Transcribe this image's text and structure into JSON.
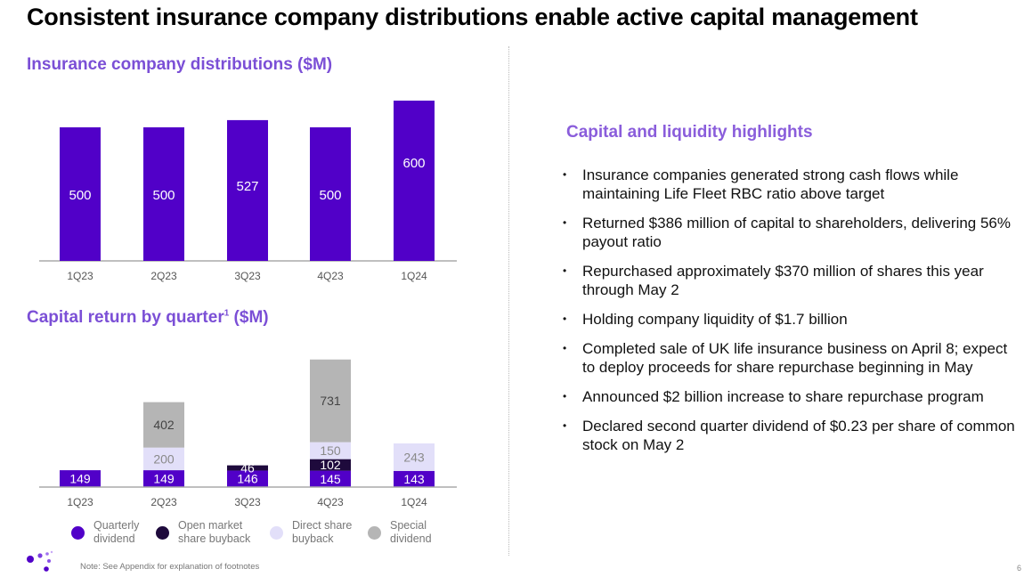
{
  "title": "Consistent insurance company distributions enable active capital management",
  "page_number": "6",
  "note": "Note: See Appendix for explanation of footnotes",
  "chart_data": [
    {
      "type": "bar",
      "title": "Insurance company distributions ($M)",
      "categories": [
        "1Q23",
        "2Q23",
        "3Q23",
        "4Q23",
        "1Q24"
      ],
      "values": [
        500,
        500,
        527,
        500,
        600
      ],
      "color": "#5100c8",
      "grid": false
    },
    {
      "type": "stacked-bar",
      "title": "Capital return by quarter",
      "title_sup": "1",
      "title_suffix": " ($M)",
      "categories": [
        "1Q23",
        "2Q23",
        "3Q23",
        "4Q23",
        "1Q24"
      ],
      "series": [
        {
          "name": "Quarterly dividend",
          "values": [
            149,
            149,
            146,
            145,
            143
          ],
          "color": "#5100c8",
          "label_color": "#ffffff"
        },
        {
          "name": "Open market share buyback",
          "values": [
            0,
            0,
            46,
            102,
            0
          ],
          "color": "#1e0a3c",
          "label_color": "#ffffff"
        },
        {
          "name": "Direct share buyback",
          "values": [
            0,
            200,
            0,
            150,
            243
          ],
          "color": "#e2dff9",
          "label_color": "#8a8a8a"
        },
        {
          "name": "Special dividend",
          "values": [
            0,
            402,
            0,
            731,
            0
          ],
          "color": "#b5b5b5",
          "label_color": "#444444"
        }
      ],
      "legend_lines": [
        [
          "Quarterly",
          "dividend"
        ],
        [
          "Open market",
          "share buyback"
        ],
        [
          "Direct share",
          "buyback"
        ],
        [
          "Special",
          "dividend"
        ]
      ],
      "legend_position": "bottom",
      "grid": false
    }
  ],
  "highlights": {
    "title": "Capital and liquidity highlights",
    "items": [
      "Insurance companies generated strong cash flows while maintaining Life Fleet RBC ratio above target",
      "Returned $386 million of capital to shareholders, delivering 56% payout ratio",
      "Repurchased approximately $370 million of shares this year through May 2",
      "Holding company liquidity of $1.7 billion",
      "Completed sale of UK life insurance business on April 8; expect to deploy proceeds for share repurchase beginning in May",
      "Announced $2 billion increase to share repurchase program",
      "Declared second quarter dividend of $0.23 per share of common stock on May 2"
    ]
  }
}
